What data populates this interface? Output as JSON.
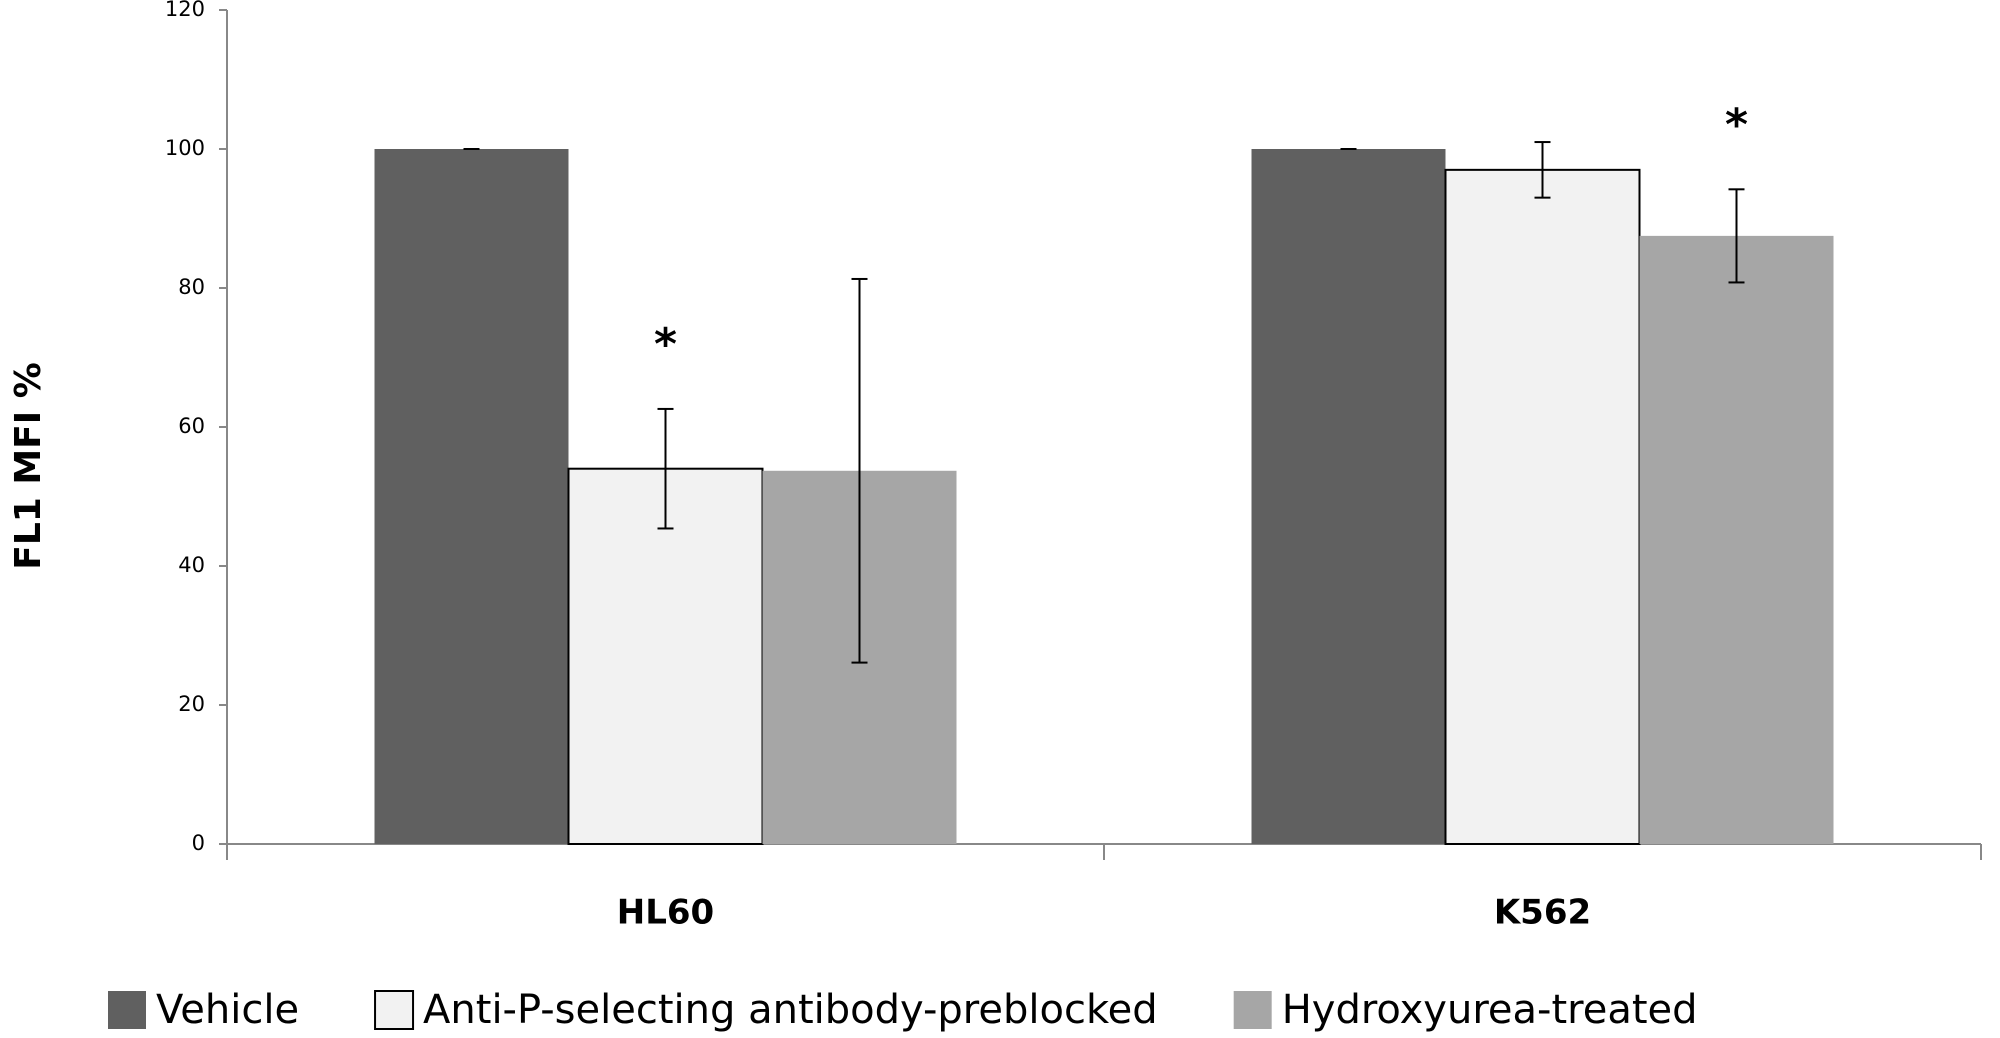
{
  "chart_data": {
    "type": "bar",
    "y_label": "FL1 MFI %",
    "categories": [
      "HL60",
      "K562"
    ],
    "series": [
      {
        "name": "Vehicle",
        "color": "#606060",
        "values": [
          100,
          100
        ],
        "errors": [
          0,
          0
        ]
      },
      {
        "name": "Anti-P-selecting antibody-preblocked",
        "color": "#f2f2f2",
        "values": [
          54,
          97
        ],
        "errors": [
          8.6,
          4
        ]
      },
      {
        "name": "Hydroxyurea-treated",
        "color": "#a6a6a6",
        "values": [
          53.7,
          87.5
        ],
        "errors": [
          27.6,
          6.7
        ]
      }
    ],
    "annotations": [
      {
        "text": "*",
        "series": "Anti-P-selecting antibody-preblocked",
        "category": "HL60"
      },
      {
        "text": "*",
        "series": "Hydroxyurea-treated",
        "category": "K562"
      }
    ],
    "ylim": [
      0,
      120
    ],
    "yticks": [
      0,
      20,
      40,
      60,
      80,
      100,
      120
    ],
    "grid": false,
    "legend": "bottom"
  }
}
